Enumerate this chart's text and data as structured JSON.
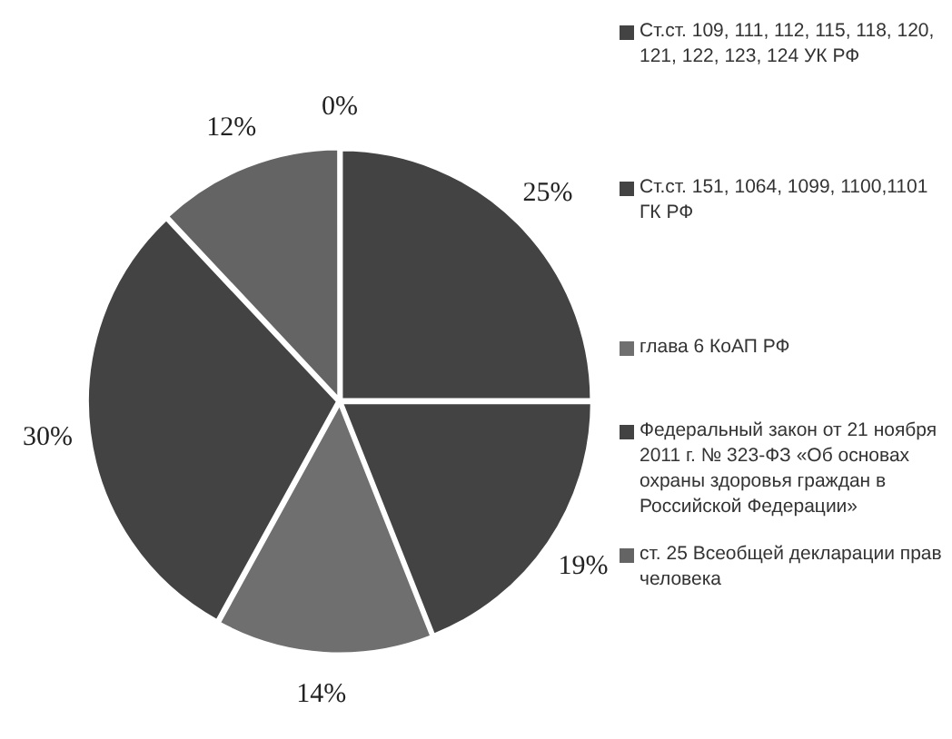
{
  "chart_data": {
    "type": "pie",
    "categories": [
      "Ст.ст. 109, 111, 112, 115, 118, 120, 121, 122, 123, 124 УК РФ",
      "Ст.ст. 151, 1064, 1099, 1100,1101 ГК РФ",
      "глава 6 КоАП РФ",
      "Федеральный закон от 21 ноября 2011 г. № 323-ФЗ «Об основах охраны здоровья граждан в Российской Федерации»",
      "ст. 25 Всеобщей декларации прав человека",
      null
    ],
    "values": [
      25,
      19,
      14,
      30,
      12,
      0
    ],
    "value_labels": [
      "25%",
      "19%",
      "14%",
      "30%",
      "12%",
      "0%"
    ],
    "colors": [
      "#434343",
      "#434343",
      "#6f6f6f",
      "#434343",
      "#646464",
      "#c8c8c8"
    ],
    "legend": "right"
  }
}
